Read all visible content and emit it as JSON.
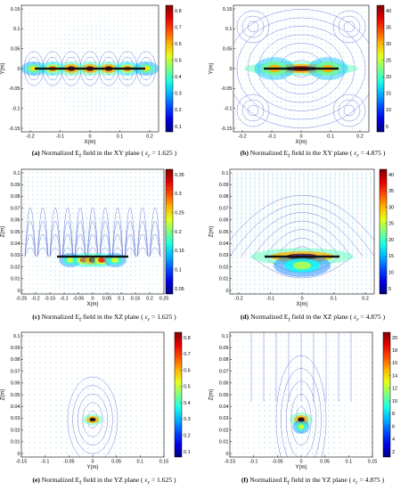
{
  "figure": {
    "panels": [
      {
        "id": "a",
        "caption_prefix": "(a)",
        "caption_text": "Normalized E",
        "caption_sub": "f",
        "caption_plane": " field in the XY plane (",
        "eps_symbol": "ε",
        "eps_sub": "r",
        "eps_value": " = 1.625 )",
        "xlabel": "X(m)",
        "ylabel": "Y(m)",
        "xticks": [
          "-0.2",
          "-0.1",
          "0",
          "0.1",
          "0.2"
        ],
        "yticks": [
          "0.15",
          "0.1",
          "0.05",
          "0",
          "-0.05",
          "-0.1",
          "-0.15"
        ],
        "cbar_ticks": [
          "0.8",
          "0.7",
          "0.6",
          "0.5",
          "0.4",
          "0.3",
          "0.2",
          "0.1"
        ]
      },
      {
        "id": "b",
        "caption_prefix": "(b)",
        "caption_text": "Normalized E",
        "caption_sub": "f",
        "caption_plane": " field in the XY plane (",
        "eps_symbol": "ε",
        "eps_sub": "r",
        "eps_value": " = 4.875 )",
        "xlabel": "X(m)",
        "ylabel": "Y(m)",
        "xticks": [
          "-0.2",
          "-0.1",
          "0",
          "0.1",
          "0.2"
        ],
        "yticks": [
          "0.15",
          "0.1",
          "0.05",
          "0",
          "-0.05",
          "-0.1",
          "-0.15"
        ],
        "cbar_ticks": [
          "40",
          "35",
          "30",
          "25",
          "20",
          "15",
          "10",
          "5"
        ]
      },
      {
        "id": "c",
        "caption_prefix": "(c)",
        "caption_text": "Normalized E",
        "caption_sub": "f",
        "caption_plane": " field in the XZ plane (",
        "eps_symbol": "ε",
        "eps_sub": "r",
        "eps_value": " = 1.625 )",
        "xlabel": "X(m)",
        "ylabel": "Z(m)",
        "xticks": [
          "-0.25",
          "-0.2",
          "-0.15",
          "-0.1",
          "-0.05",
          "0",
          "0.05",
          "0.1",
          "0.15",
          "0.2",
          "0.25"
        ],
        "yticks": [
          "0.1",
          "0.09",
          "0.08",
          "0.07",
          "0.06",
          "0.05",
          "0.04",
          "0.03",
          "0.02",
          "0.01",
          "0"
        ],
        "cbar_ticks": [
          "0.35",
          "0.3",
          "0.25",
          "0.2",
          "0.15",
          "0.1",
          "0.05"
        ]
      },
      {
        "id": "d",
        "caption_prefix": "(d)",
        "caption_text": "Normalized E",
        "caption_sub": "f",
        "caption_plane": " field in the XZ plane (",
        "eps_symbol": "ε",
        "eps_sub": "r",
        "eps_value": " = 4.875 )",
        "xlabel": "X(m)",
        "ylabel": "Z(m)",
        "xticks": [
          "-0.2",
          "-0.1",
          "0",
          "0.1",
          "0.2"
        ],
        "yticks": [
          "0.1",
          "0.09",
          "0.08",
          "0.07",
          "0.06",
          "0.05",
          "0.04",
          "0.03",
          "0.02",
          "0.01",
          "0"
        ],
        "cbar_ticks": [
          "40",
          "35",
          "30",
          "25",
          "20",
          "15",
          "10",
          "5"
        ]
      },
      {
        "id": "e",
        "caption_prefix": "(e)",
        "caption_text": "Normalized E",
        "caption_sub": "f",
        "caption_plane": " field in the YZ plane (",
        "eps_symbol": "ε",
        "eps_sub": "r",
        "eps_value": " = 1.625 )",
        "xlabel": "Y(m)",
        "ylabel": "Z(m)",
        "xticks": [
          "-0.15",
          "-0.1",
          "-0.05",
          "0",
          "0.05",
          "0.1",
          "0.15"
        ],
        "yticks": [
          "0.1",
          "0.09",
          "0.08",
          "0.07",
          "0.06",
          "0.05",
          "0.04",
          "0.03",
          "0.02",
          "0.01",
          "0"
        ],
        "cbar_ticks": [
          "0.8",
          "0.7",
          "0.6",
          "0.5",
          "0.4",
          "0.3",
          "0.2",
          "0.1"
        ]
      },
      {
        "id": "f",
        "caption_prefix": "(f)",
        "caption_text": "Normalized E",
        "caption_sub": "f",
        "caption_plane": " field in the YZ plane (",
        "eps_symbol": "ε",
        "eps_sub": "r",
        "eps_value": " = 4.875 )",
        "xlabel": "Y(m)",
        "ylabel": "Z(m)",
        "xticks": [
          "-0.15",
          "-0.1",
          "-0.05",
          "0",
          "0.05",
          "0.1",
          "0.15"
        ],
        "yticks": [
          "0.1",
          "0.09",
          "0.08",
          "0.07",
          "0.06",
          "0.05",
          "0.04",
          "0.03",
          "0.02",
          "0.01",
          "0"
        ],
        "cbar_ticks": [
          "20",
          "18",
          "16",
          "14",
          "12",
          "10",
          "8",
          "6",
          "4",
          "2"
        ]
      }
    ]
  },
  "colors": {
    "stream": "#4a5ad0",
    "arrow": "#5fb8dd",
    "strip": "#111111"
  }
}
